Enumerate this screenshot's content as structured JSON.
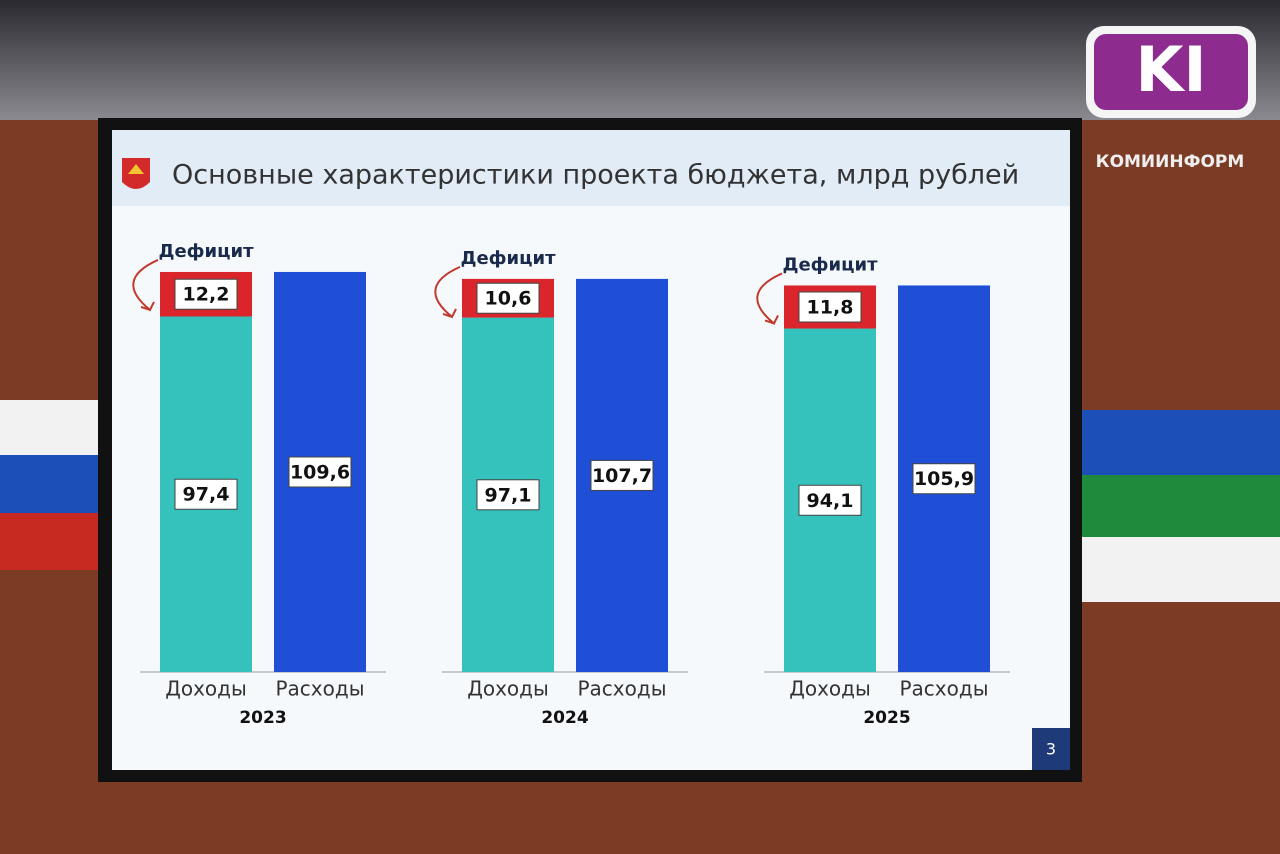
{
  "chart_data": {
    "type": "grouped_stacked_bar",
    "title": "Основные характеристики проекта бюджета, млрд рублей",
    "categories": [
      "2023",
      "2024",
      "2025"
    ],
    "bar_labels": [
      "Доходы",
      "Расходы"
    ],
    "annotation": "Дефицит",
    "series": [
      {
        "values": [
          97.4,
          97.1,
          94.1
        ],
        "value_labels": [
          "97,4",
          "97,1",
          "94,1"
        ],
        "color": "#35c2bd",
        "stack": 0
      },
      {
        "values": [
          12.2,
          10.6,
          11.8
        ],
        "value_labels": [
          "12,2",
          "10,6",
          "11,8"
        ],
        "color": "#d9252b",
        "stack": 0
      },
      {
        "values": [
          109.6,
          107.7,
          105.9
        ],
        "value_labels": [
          "109,6",
          "107,7",
          "105,9"
        ],
        "color": "#1e4fd6",
        "stack": 1
      }
    ],
    "page_number": "3"
  },
  "watermark": {
    "logo": "KI",
    "name": "КОМИИНФОРМ"
  }
}
